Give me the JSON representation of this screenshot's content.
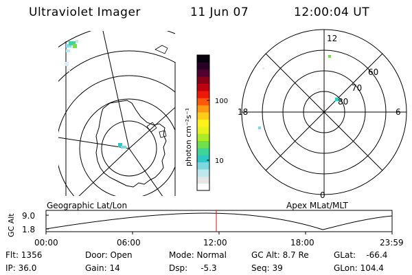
{
  "header": {
    "title": "Ultraviolet Imager",
    "date": "11 Jun 07",
    "time": "12:00:04 UT"
  },
  "colorbar": {
    "unit_label": "photon cm⁻²s⁻¹",
    "ticks": [
      "100",
      "10"
    ],
    "colors": [
      "#ffffff",
      "#e6e6e6",
      "#bfe8ee",
      "#7fd8e0",
      "#2fc8c8",
      "#3fd59a",
      "#6fe04a",
      "#a8ec2a",
      "#e6f21a",
      "#fff21a",
      "#ffcc18",
      "#ff9a10",
      "#ff5a08",
      "#ee1808",
      "#c0000c",
      "#8a0018",
      "#520030",
      "#280028",
      "#08000c"
    ]
  },
  "left_panel": {
    "caption": "Geographic Lat/Lon"
  },
  "right_panel": {
    "caption": "Apex  MLat/MLT",
    "mlt_labels": {
      "top": "12",
      "left": "18",
      "right": "6",
      "bottom": "0"
    },
    "lat_labels": [
      "60",
      "70",
      "80"
    ]
  },
  "altitude_plot": {
    "ylabel": "GC Alt",
    "y_ticks": [
      "9.0",
      "1.8"
    ],
    "x_ticks": [
      "00:00",
      "06:00",
      "12:00",
      "18:00",
      "23:59"
    ],
    "current_time_marker": "12:00:04"
  },
  "info": {
    "flt": "Flt: 1356",
    "ip": "IP: 36.0",
    "door": "Door: Open",
    "gain": "Gain: 14",
    "mode": "Mode: Normal",
    "dsp": "Dsp:     -5.3",
    "gcalt": "GC Alt: 8.7 Re",
    "seq": "Seq: 39",
    "glat": "GLat:    -66.4",
    "glon": "GLon: 104.4"
  }
}
